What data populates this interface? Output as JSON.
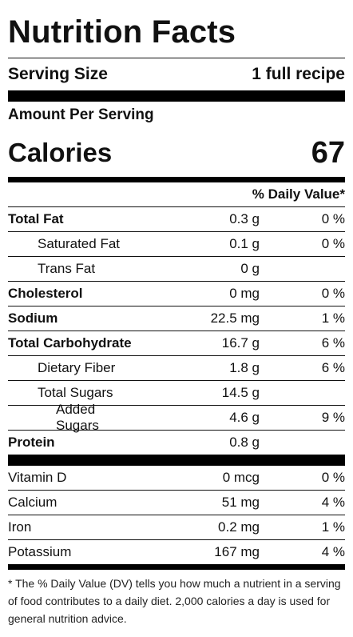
{
  "title": "Nutrition Facts",
  "serving": {
    "label": "Serving Size",
    "value": "1 full recipe"
  },
  "amount_per_serving": "Amount Per Serving",
  "calories": {
    "label": "Calories",
    "value": "67"
  },
  "daily_value_header": "% Daily Value*",
  "nutrients": [
    {
      "name": "Total Fat",
      "amount": "0.3 g",
      "dv": "0 %"
    },
    {
      "name": "Saturated Fat",
      "amount": "0.1 g",
      "dv": "0 %"
    },
    {
      "name": "Trans Fat",
      "amount": "0 g",
      "dv": ""
    },
    {
      "name": "Cholesterol",
      "amount": "0 mg",
      "dv": "0 %"
    },
    {
      "name": "Sodium",
      "amount": "22.5 mg",
      "dv": "1 %"
    },
    {
      "name": "Total Carbohydrate",
      "amount": "16.7 g",
      "dv": "6 %"
    },
    {
      "name": "Dietary Fiber",
      "amount": "1.8 g",
      "dv": "6 %"
    },
    {
      "name": "Total Sugars",
      "amount": "14.5 g",
      "dv": ""
    },
    {
      "name": "Added Sugars",
      "amount": "4.6 g",
      "dv": "9 %"
    },
    {
      "name": "Protein",
      "amount": "0.8 g",
      "dv": ""
    }
  ],
  "vitamins": [
    {
      "name": "Vitamin D",
      "amount": "0 mcg",
      "dv": "0 %"
    },
    {
      "name": "Calcium",
      "amount": "51 mg",
      "dv": "4 %"
    },
    {
      "name": "Iron",
      "amount": "0.2 mg",
      "dv": "1 %"
    },
    {
      "name": "Potassium",
      "amount": "167 mg",
      "dv": "4 %"
    }
  ],
  "footnote": "* The % Daily Value (DV) tells you how much a nutrient in a serving of food contributes to a daily diet. 2,000 calories a day is used for general nutrition advice."
}
